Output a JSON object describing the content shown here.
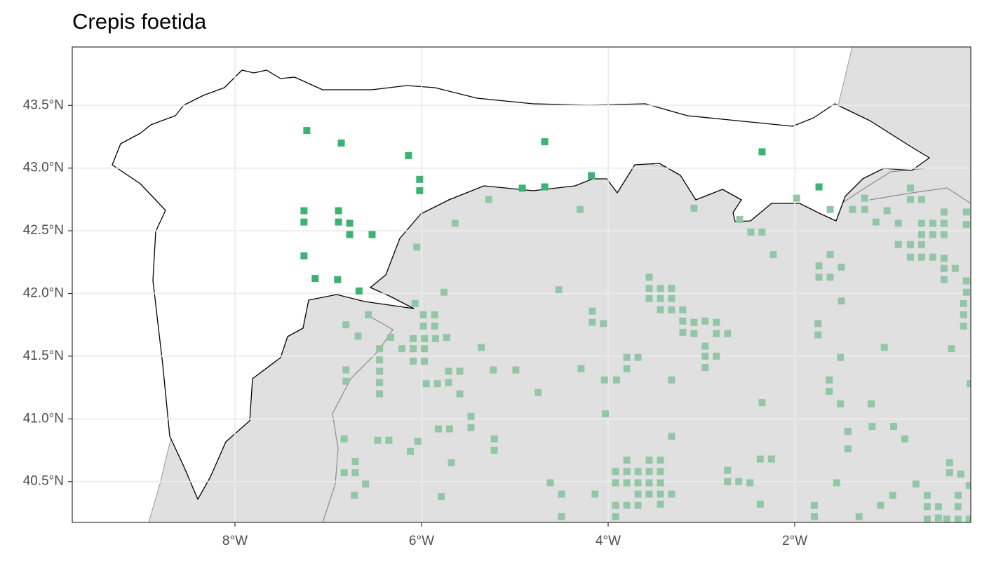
{
  "chart_data": {
    "type": "scatter",
    "title": "Crepis foetida",
    "xlim": [
      -9.744,
      -0.113
    ],
    "ylim": [
      40.174,
      43.966
    ],
    "xticks": [
      {
        "value": -8,
        "label": "8°W"
      },
      {
        "value": -6,
        "label": "6°W"
      },
      {
        "value": -4,
        "label": "4°W"
      },
      {
        "value": -2,
        "label": "2°W"
      }
    ],
    "yticks": [
      {
        "value": 40.5,
        "label": "40.5°N"
      },
      {
        "value": 41.0,
        "label": "41.0°N"
      },
      {
        "value": 41.5,
        "label": "41.5°N"
      },
      {
        "value": 42.0,
        "label": "42.0°N"
      },
      {
        "value": 42.5,
        "label": "42.5°N"
      },
      {
        "value": 43.0,
        "label": "43.0°N"
      },
      {
        "value": 43.5,
        "label": "43.5°N"
      }
    ],
    "grid": true,
    "series": [
      {
        "color": "#93c6a6",
        "x": [
          -5.28,
          -4.3,
          -3.08,
          -2.59,
          -2.47,
          -2.35,
          -2.23,
          -1.98,
          -1.62,
          -1.38,
          -1.25,
          -1.25,
          -1.01,
          -1.13,
          -0.89,
          -0.76,
          -0.76,
          -0.64,
          -0.64,
          -0.52,
          -0.4,
          -0.4,
          -0.16,
          -0.16,
          -0.64,
          -0.52,
          -0.4,
          -0.89,
          -0.76,
          -0.64,
          -0.76,
          -0.64,
          -0.52,
          -0.4,
          -0.4,
          -0.28,
          -0.4,
          -0.16,
          -0.16,
          -0.19,
          -0.19,
          -0.19,
          -1.74,
          -1.62,
          -1.5,
          -1.74,
          -1.62,
          -1.5,
          -5.64,
          -6.05,
          -5.76,
          -6.07,
          -5.98,
          -5.86,
          -5.98,
          -5.86,
          -6.09,
          -5.97,
          -5.85,
          -5.73,
          -6.21,
          -6.09,
          -5.97,
          -6.09,
          -5.97,
          -6.45,
          -6.33,
          -6.45,
          -6.45,
          -6.45,
          -6.45,
          -6.81,
          -6.68,
          -6.57,
          -6.81,
          -6.81,
          -5.95,
          -5.83,
          -5.71,
          -5.59,
          -5.71,
          -5.59,
          -5.36,
          -5.23,
          -4.99,
          -4.75,
          -4.53,
          -4.29,
          -4.17,
          -4.17,
          -4.05,
          -4.04,
          -3.91,
          -3.8,
          -3.68,
          -3.8,
          -4.03,
          -3.56,
          -3.56,
          -3.44,
          -3.32,
          -3.56,
          -3.44,
          -3.32,
          -3.44,
          -3.32,
          -3.2,
          -3.2,
          -3.08,
          -2.96,
          -2.84,
          -3.2,
          -3.08,
          -2.84,
          -2.72,
          -2.96,
          -2.96,
          -2.84,
          -2.96,
          -3.32,
          -1.75,
          -1.75,
          -1.51,
          -1.63,
          -1.63,
          -1.51,
          -1.04,
          -0.32,
          -0.12,
          -2.35,
          -1.18,
          -5.47,
          -5.47,
          -5.82,
          -5.7,
          -5.22,
          -5.22,
          -6.12,
          -6.04,
          -6.47,
          -6.35,
          -6.83,
          -6.71,
          -6.83,
          -6.71,
          -6.6,
          -6.72,
          -5.68,
          -5.79,
          -4.62,
          -4.5,
          -4.5,
          -4.14,
          -3.92,
          -3.8,
          -3.92,
          -3.8,
          -3.68,
          -3.56,
          -3.44,
          -3.56,
          -3.44,
          -3.8,
          -3.68,
          -3.56,
          -3.44,
          -3.68,
          -3.56,
          -3.44,
          -3.32,
          -3.92,
          -3.8,
          -3.68,
          -3.44,
          -3.92,
          -3.32,
          -2.72,
          -2.72,
          -2.6,
          -2.48,
          -2.37,
          -2.25,
          -2.37,
          -1.55,
          -1.79,
          -1.79,
          -1.43,
          -1.17,
          -0.94,
          -0.82,
          -1.43,
          -1.31,
          -1.08,
          -0.95,
          -0.7,
          -0.58,
          -0.58,
          -0.58,
          -0.46,
          -0.46,
          -0.34,
          -0.34,
          -0.22,
          -0.25,
          -0.25,
          -0.37,
          -0.25,
          -0.13,
          -0.13
        ],
        "y": [
          42.75,
          42.67,
          42.68,
          42.59,
          42.49,
          42.49,
          42.31,
          42.76,
          42.67,
          42.67,
          42.76,
          42.67,
          42.66,
          42.57,
          42.56,
          42.84,
          42.75,
          42.75,
          42.56,
          42.56,
          42.65,
          42.56,
          42.65,
          42.55,
          42.47,
          42.47,
          42.47,
          42.39,
          42.39,
          42.39,
          42.29,
          42.29,
          42.29,
          42.28,
          42.2,
          42.2,
          42.11,
          42.1,
          42.01,
          41.92,
          41.83,
          41.74,
          42.22,
          42.31,
          42.21,
          42.13,
          42.13,
          41.94,
          42.56,
          42.37,
          42.01,
          41.92,
          41.83,
          41.83,
          41.74,
          41.74,
          41.64,
          41.64,
          41.64,
          41.65,
          41.56,
          41.56,
          41.56,
          41.46,
          41.46,
          41.56,
          41.65,
          41.47,
          41.38,
          41.29,
          41.2,
          41.75,
          41.66,
          41.83,
          41.39,
          41.3,
          41.28,
          41.28,
          41.38,
          41.38,
          41.29,
          41.2,
          41.57,
          41.39,
          41.39,
          41.21,
          42.03,
          41.4,
          41.86,
          41.77,
          41.76,
          41.31,
          41.31,
          41.49,
          41.49,
          41.4,
          41.04,
          42.13,
          42.04,
          42.04,
          42.04,
          41.96,
          41.96,
          41.96,
          41.87,
          41.87,
          41.87,
          41.78,
          41.77,
          41.78,
          41.77,
          41.69,
          41.68,
          41.68,
          41.68,
          41.58,
          41.5,
          41.5,
          41.41,
          41.31,
          41.76,
          41.67,
          41.49,
          41.31,
          41.22,
          41.12,
          41.57,
          41.56,
          41.28,
          41.13,
          41.12,
          41.02,
          40.93,
          40.92,
          40.92,
          40.84,
          40.75,
          40.74,
          40.82,
          40.83,
          40.83,
          40.84,
          40.66,
          40.57,
          40.57,
          40.48,
          40.39,
          40.65,
          40.38,
          40.49,
          40.4,
          40.22,
          40.4,
          40.58,
          40.67,
          40.49,
          40.58,
          40.58,
          40.58,
          40.58,
          40.67,
          40.67,
          40.49,
          40.49,
          40.49,
          40.49,
          40.4,
          40.4,
          40.4,
          40.4,
          40.31,
          40.31,
          40.31,
          40.32,
          40.22,
          40.86,
          40.59,
          40.5,
          40.5,
          40.49,
          40.68,
          40.68,
          40.32,
          40.49,
          40.31,
          40.22,
          40.9,
          40.94,
          40.94,
          40.84,
          40.76,
          40.22,
          40.31,
          40.39,
          40.48,
          40.39,
          40.3,
          40.2,
          40.3,
          40.21,
          40.65,
          40.57,
          40.56,
          40.39,
          40.3,
          40.2,
          40.2,
          40.47,
          40.2
        ]
      },
      {
        "color": "#3cb371",
        "x": [
          -7.23,
          -6.86,
          -6.14,
          -6.02,
          -6.02,
          -7.26,
          -7.26,
          -6.89,
          -6.89,
          -6.77,
          -6.77,
          -6.53,
          -7.26,
          -7.14,
          -6.9,
          -6.67,
          -4.68,
          -4.92,
          -4.68,
          -4.18,
          -2.35,
          -1.74
        ],
        "y": [
          43.3,
          43.2,
          43.1,
          42.91,
          42.82,
          42.66,
          42.57,
          42.66,
          42.57,
          42.56,
          42.47,
          42.47,
          42.3,
          42.12,
          42.11,
          42.02,
          43.21,
          42.84,
          42.85,
          42.94,
          43.13,
          42.85
        ]
      }
    ]
  }
}
